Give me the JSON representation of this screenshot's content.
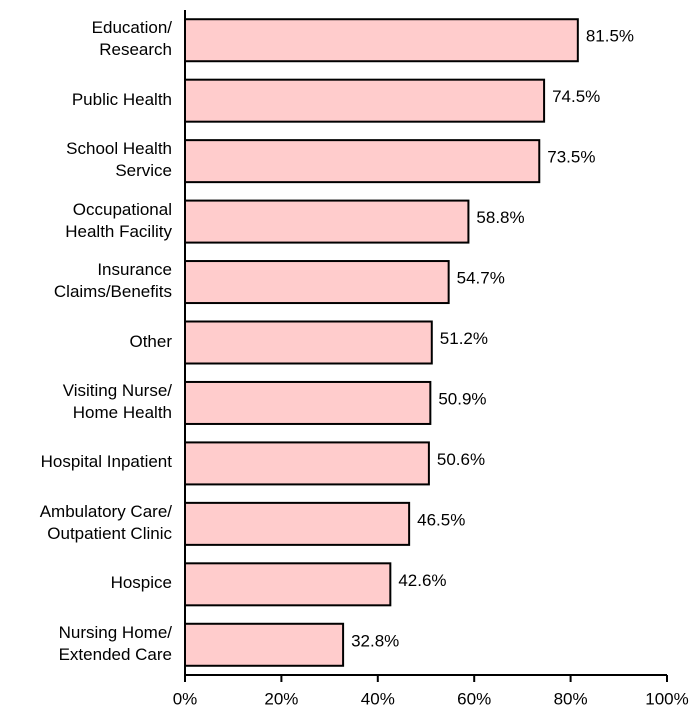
{
  "chart_data": {
    "type": "barh",
    "categories": [
      "Education/\nResearch",
      "Public Health",
      "School Health\nService",
      "Occupational\nHealth Facility",
      "Insurance\nClaims/Benefits",
      "Other",
      "Visiting Nurse/\nHome Health",
      "Hospital Inpatient",
      "Ambulatory Care/\nOutpatient Clinic",
      "Hospice",
      "Nursing Home/\nExtended Care"
    ],
    "values": [
      81.5,
      74.5,
      73.5,
      58.8,
      54.7,
      51.2,
      50.9,
      50.6,
      46.5,
      42.6,
      32.8
    ],
    "value_labels": [
      "81.5%",
      "74.5%",
      "73.5%",
      "58.8%",
      "54.7%",
      "51.2%",
      "50.9%",
      "50.6%",
      "46.5%",
      "42.6%",
      "32.8%"
    ],
    "color": "#ffcccc",
    "xlim": [
      0,
      100
    ],
    "xticks": [
      {
        "value": 0,
        "label": "0%"
      },
      {
        "value": 20,
        "label": "20%"
      },
      {
        "value": 40,
        "label": "40%"
      },
      {
        "value": 60,
        "label": "60%"
      },
      {
        "value": 80,
        "label": "80%"
      },
      {
        "value": 100,
        "label": "100%"
      }
    ]
  }
}
